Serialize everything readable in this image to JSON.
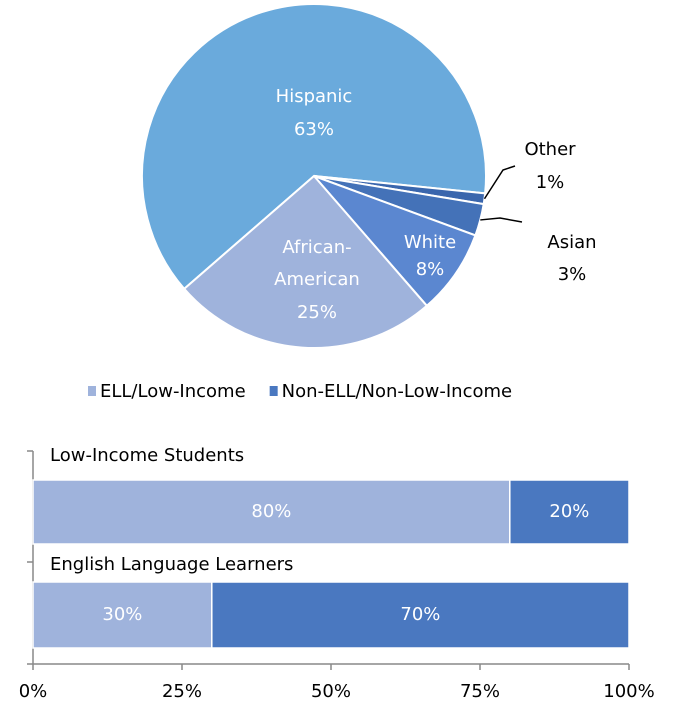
{
  "chart_data": [
    {
      "type": "pie",
      "categories": [
        "Hispanic",
        "Other",
        "Asian",
        "White",
        "African-American"
      ],
      "values": [
        63,
        1,
        3,
        8,
        25
      ],
      "value_labels": [
        "63%",
        "1%",
        "3%",
        "8%",
        "25%"
      ],
      "colors": [
        "#6aaadc",
        "#3a66ad",
        "#4472b8",
        "#5b87d0",
        "#9fb3dc"
      ]
    },
    {
      "type": "stacked-bar",
      "orientation": "horizontal",
      "categories": [
        "Low-Income Students",
        "English Language Learners"
      ],
      "series": [
        {
          "name": "ELL/Low-Income",
          "color": "#9fb3dc",
          "values": [
            80,
            30
          ],
          "value_labels": [
            "80%",
            "30%"
          ]
        },
        {
          "name": "Non-ELL/Non-Low-Income",
          "color": "#4a78c0",
          "values": [
            20,
            70
          ],
          "value_labels": [
            "20%",
            "70%"
          ]
        }
      ],
      "xlim": [
        0,
        100
      ],
      "xticks": [
        {
          "value": 0,
          "label": "0%"
        },
        {
          "value": 25,
          "label": "25%"
        },
        {
          "value": 50,
          "label": "50%"
        },
        {
          "value": 75,
          "label": "75%"
        },
        {
          "value": 100,
          "label": "100%"
        }
      ],
      "legend": "top"
    }
  ]
}
